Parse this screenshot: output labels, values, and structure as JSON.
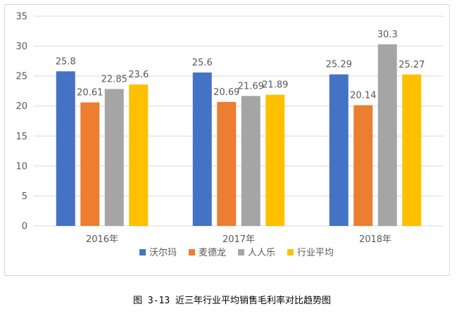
{
  "caption": "图 3-13 近三年行业平均销售毛利率对比趋势图",
  "chart_data": {
    "type": "bar",
    "categories": [
      "2016年",
      "2017年",
      "2018年"
    ],
    "series": [
      {
        "name": "沃尔玛",
        "color": "#4472C4",
        "values": [
          25.8,
          25.6,
          25.29
        ],
        "labels": [
          "25.8",
          "25.6",
          "25.29"
        ]
      },
      {
        "name": "麦德龙",
        "color": "#ED7D31",
        "values": [
          20.61,
          20.69,
          20.14
        ],
        "labels": [
          "20.61",
          "20.69",
          "20.14"
        ]
      },
      {
        "name": "人人乐",
        "color": "#A5A5A5",
        "values": [
          22.85,
          21.69,
          30.3
        ],
        "labels": [
          "22.85",
          "21.69",
          "30.3"
        ]
      },
      {
        "name": "行业平均",
        "color": "#FFC000",
        "values": [
          23.6,
          21.89,
          25.27
        ],
        "labels": [
          "23.6",
          "21.89",
          "25.27"
        ]
      }
    ],
    "yticks": [
      "0",
      "5",
      "10",
      "15",
      "20",
      "25",
      "30",
      "35"
    ],
    "ylim": [
      0,
      35
    ],
    "grid": true,
    "legend_position": "bottom",
    "gridline_color": "#d9d9d9"
  }
}
